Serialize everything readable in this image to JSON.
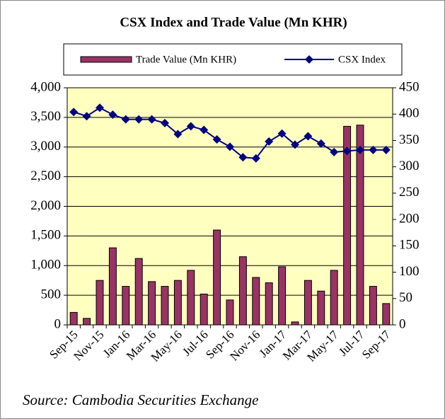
{
  "chart_data": {
    "type": "bar-line",
    "title": "CSX Index and Trade Value (Mn KHR)",
    "source": "Source: Cambodia Securities Exchange",
    "categories": [
      "Sep-15",
      null,
      "Nov-15",
      null,
      "Jan-16",
      null,
      "Mar-16",
      null,
      "May-16",
      null,
      "Jul-16",
      null,
      "Sep-16",
      null,
      "Nov-16",
      null,
      "Jan-17",
      null,
      "Mar-17",
      null,
      "May-17",
      null,
      "Jul-17",
      null,
      "Sep-17"
    ],
    "series": [
      {
        "name": "Trade Value (Mn KHR)",
        "type": "bar",
        "color": "#993366",
        "axis": "y",
        "values": [
          210,
          110,
          750,
          1300,
          650,
          1120,
          730,
          650,
          750,
          920,
          520,
          1600,
          420,
          1150,
          800,
          710,
          980,
          50,
          750,
          570,
          920,
          3350,
          3370,
          650,
          360
        ]
      },
      {
        "name": "CSX Index",
        "type": "line",
        "color": "#000080",
        "axis": "y2",
        "values": [
          404,
          396,
          412,
          399,
          390,
          390,
          390,
          383,
          362,
          377,
          370,
          352,
          338,
          318,
          316,
          348,
          363,
          342,
          358,
          344,
          328,
          330,
          332,
          332,
          332
        ]
      }
    ],
    "ylim": [
      0,
      4000
    ],
    "yticks": [
      0,
      500,
      {
        "value": 1000,
        "label": "1,000"
      },
      {
        "value": 1500,
        "label": "1,500"
      },
      {
        "value": 2000,
        "label": "2,000"
      },
      {
        "value": 2500,
        "label": "2,500"
      },
      {
        "value": 3000,
        "label": "3,000"
      },
      {
        "value": 3500,
        "label": "3,500"
      },
      {
        "value": 4000,
        "label": "4,000"
      }
    ],
    "y2lim": [
      0,
      450
    ],
    "y2ticks": [
      0,
      50,
      100,
      150,
      200,
      250,
      300,
      350,
      400,
      450
    ],
    "grid": true,
    "legend": "top"
  }
}
